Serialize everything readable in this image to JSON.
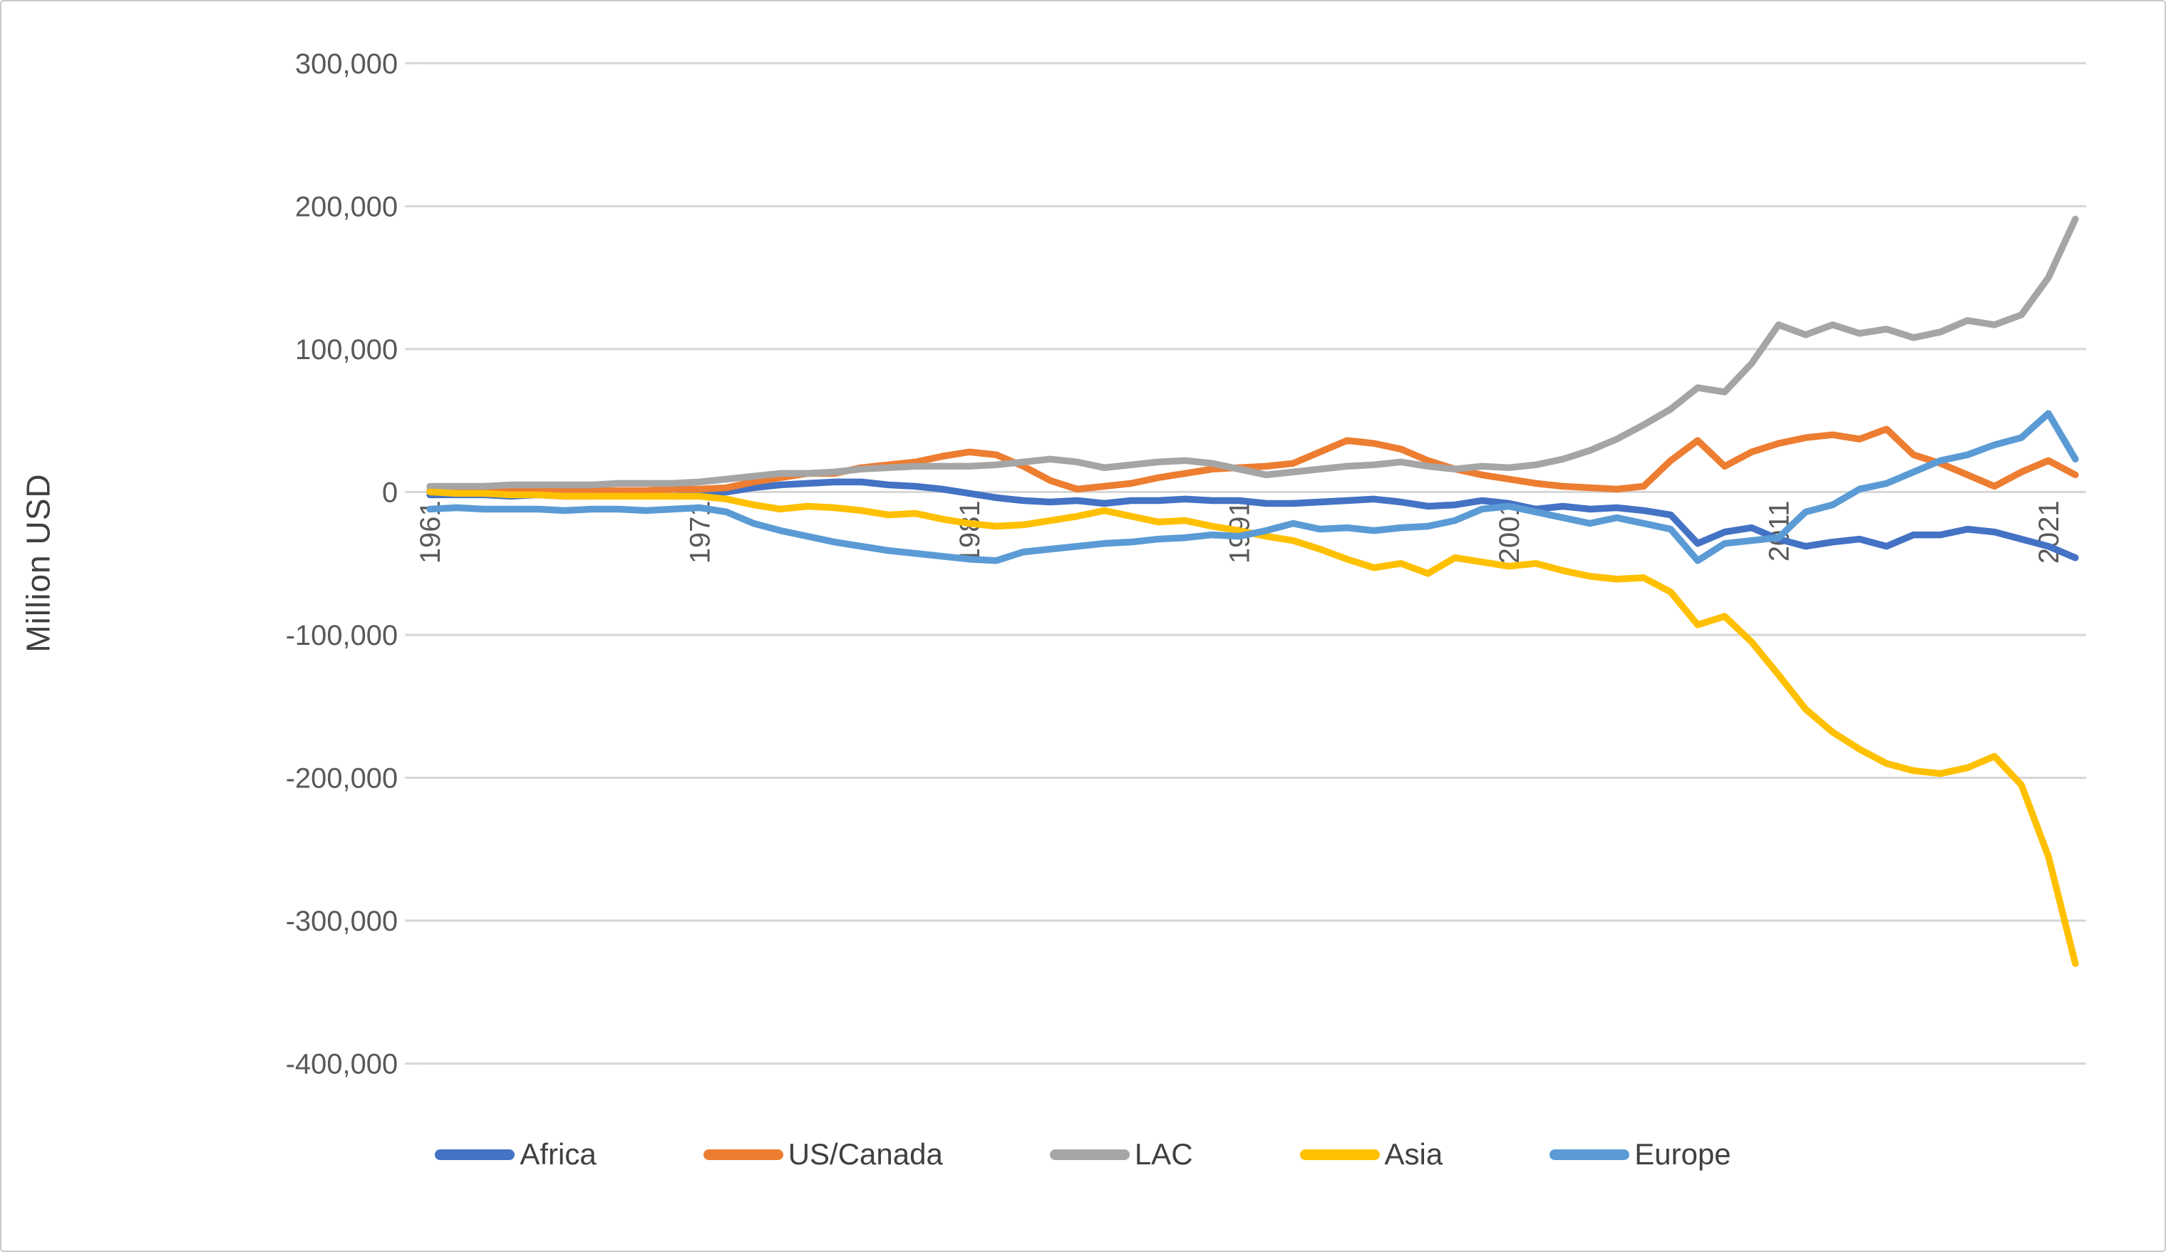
{
  "frame": {
    "background": "#FFFFFF",
    "border_color": "#C9C9C9"
  },
  "chart_data": {
    "type": "line",
    "title": "",
    "xlabel": "",
    "ylabel": "Million USD",
    "ylim": [
      -400000,
      300000
    ],
    "grid": "horizontal",
    "legend_position": "bottom",
    "axis_label_color": "#595959",
    "gridline_color": "#D6D6D6",
    "x": [
      1961,
      1962,
      1963,
      1964,
      1965,
      1966,
      1967,
      1968,
      1969,
      1970,
      1971,
      1972,
      1973,
      1974,
      1975,
      1976,
      1977,
      1978,
      1979,
      1980,
      1981,
      1982,
      1983,
      1984,
      1985,
      1986,
      1987,
      1988,
      1989,
      1990,
      1991,
      1992,
      1993,
      1994,
      1995,
      1996,
      1997,
      1998,
      1999,
      2000,
      2001,
      2002,
      2003,
      2004,
      2005,
      2006,
      2007,
      2008,
      2009,
      2010,
      2011,
      2012,
      2013,
      2014,
      2015,
      2016,
      2017,
      2018,
      2019,
      2020,
      2021,
      2022
    ],
    "x_tick_years": [
      1961,
      1971,
      1981,
      1991,
      2001,
      2011,
      2021
    ],
    "y_ticks": [
      300000,
      200000,
      100000,
      0,
      -100000,
      -200000,
      -300000,
      -400000
    ],
    "series": [
      {
        "name": "Africa",
        "color": "#4472C4",
        "values": [
          -2000,
          -2000,
          -2000,
          -3000,
          -2000,
          -3000,
          -3000,
          -2000,
          -2000,
          -3000,
          -2000,
          0,
          3000,
          5000,
          6000,
          7000,
          7000,
          5000,
          4000,
          2000,
          -1000,
          -4000,
          -6000,
          -7000,
          -6000,
          -8000,
          -6000,
          -6000,
          -5000,
          -6000,
          -6000,
          -8000,
          -8000,
          -7000,
          -6000,
          -5000,
          -7000,
          -10000,
          -9000,
          -6000,
          -8000,
          -12000,
          -10000,
          -12000,
          -11000,
          -13000,
          -16000,
          -36000,
          -28000,
          -25000,
          -33000,
          -38000,
          -35000,
          -33000,
          -38000,
          -30000,
          -30000,
          -26000,
          -28000,
          -33000,
          -38000,
          -46000
        ]
      },
      {
        "name": "US/Canada",
        "color": "#ED7D31",
        "values": [
          1000,
          1000,
          1000,
          2000,
          1000,
          1000,
          1000,
          1000,
          1000,
          2000,
          2000,
          3000,
          7000,
          10000,
          13000,
          13000,
          17000,
          19000,
          21000,
          25000,
          28000,
          26000,
          18000,
          8000,
          2000,
          4000,
          6000,
          10000,
          13000,
          16000,
          17000,
          18000,
          20000,
          28000,
          36000,
          34000,
          30000,
          22000,
          16000,
          12000,
          9000,
          6000,
          4000,
          3000,
          2000,
          4000,
          22000,
          36000,
          18000,
          28000,
          34000,
          38000,
          40000,
          37000,
          44000,
          26000,
          20000,
          12000,
          4000,
          14000,
          22000,
          12000
        ]
      },
      {
        "name": "LAC",
        "color": "#A5A5A5",
        "values": [
          4000,
          4000,
          4000,
          5000,
          5000,
          5000,
          5000,
          6000,
          6000,
          6000,
          7000,
          9000,
          11000,
          13000,
          13000,
          14000,
          16000,
          17000,
          18000,
          18000,
          18000,
          19000,
          21000,
          23000,
          21000,
          17000,
          19000,
          21000,
          22000,
          20000,
          16000,
          12000,
          14000,
          16000,
          18000,
          19000,
          21000,
          18000,
          16000,
          18000,
          17000,
          19000,
          23000,
          29000,
          37000,
          47000,
          58000,
          73000,
          70000,
          90000,
          117000,
          110000,
          117000,
          111000,
          114000,
          108000,
          112000,
          120000,
          117000,
          124000,
          150000,
          191000
        ]
      },
      {
        "name": "Asia",
        "color": "#FFC000",
        "values": [
          0,
          -1000,
          -1000,
          -2000,
          -2000,
          -3000,
          -3000,
          -3000,
          -3000,
          -3000,
          -3000,
          -5000,
          -9000,
          -12000,
          -10000,
          -11000,
          -13000,
          -16000,
          -15000,
          -19000,
          -22000,
          -24000,
          -23000,
          -20000,
          -17000,
          -13000,
          -17000,
          -21000,
          -20000,
          -24000,
          -27000,
          -31000,
          -34000,
          -40000,
          -47000,
          -53000,
          -50000,
          -57000,
          -46000,
          -49000,
          -52000,
          -50000,
          -55000,
          -59000,
          -61000,
          -60000,
          -70000,
          -93000,
          -87000,
          -105000,
          -128000,
          -152000,
          -168000,
          -180000,
          -190000,
          -195000,
          -197000,
          -193000,
          -185000,
          -205000,
          -255000,
          -330000
        ]
      },
      {
        "name": "Europe",
        "color": "#5B9BD5",
        "values": [
          -12000,
          -11000,
          -12000,
          -12000,
          -12000,
          -13000,
          -12000,
          -12000,
          -13000,
          -12000,
          -11000,
          -14000,
          -22000,
          -27000,
          -31000,
          -35000,
          -38000,
          -41000,
          -43000,
          -45000,
          -47000,
          -48000,
          -42000,
          -40000,
          -38000,
          -36000,
          -35000,
          -33000,
          -32000,
          -30000,
          -31000,
          -27000,
          -22000,
          -26000,
          -25000,
          -27000,
          -25000,
          -24000,
          -20000,
          -12000,
          -10000,
          -14000,
          -18000,
          -22000,
          -18000,
          -22000,
          -26000,
          -48000,
          -36000,
          -34000,
          -32000,
          -14000,
          -9000,
          2000,
          6000,
          14000,
          22000,
          26000,
          33000,
          38000,
          55000,
          23000
        ]
      }
    ]
  }
}
